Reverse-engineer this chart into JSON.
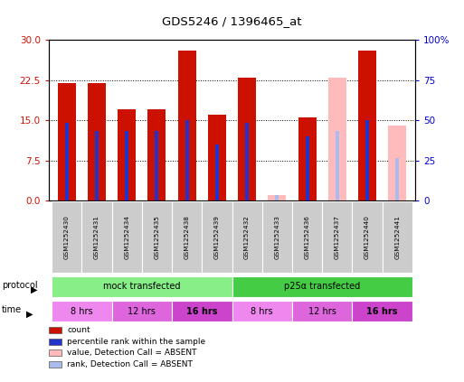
{
  "title": "GDS5246 / 1396465_at",
  "samples": [
    "GSM1252430",
    "GSM1252431",
    "GSM1252434",
    "GSM1252435",
    "GSM1252438",
    "GSM1252439",
    "GSM1252432",
    "GSM1252433",
    "GSM1252436",
    "GSM1252437",
    "GSM1252440",
    "GSM1252441"
  ],
  "red_values": [
    22.0,
    22.0,
    17.0,
    17.0,
    28.0,
    16.0,
    23.0,
    0.0,
    15.5,
    0.0,
    28.0,
    0.0
  ],
  "blue_values": [
    14.5,
    13.0,
    13.0,
    13.0,
    15.0,
    10.5,
    14.5,
    0.0,
    12.0,
    0.0,
    15.0,
    0.0
  ],
  "pink_values": [
    0.0,
    0.0,
    0.0,
    0.0,
    0.0,
    0.0,
    0.0,
    1.0,
    0.0,
    23.0,
    0.0,
    14.0
  ],
  "lblue_values": [
    0.0,
    0.0,
    0.0,
    0.0,
    0.0,
    0.0,
    0.0,
    1.0,
    0.0,
    13.0,
    0.0,
    8.0
  ],
  "ylim": [
    0,
    30
  ],
  "ylim_right": [
    0,
    100
  ],
  "yticks_left": [
    0,
    7.5,
    15,
    22.5,
    30
  ],
  "yticks_right": [
    0,
    25,
    50,
    75,
    100
  ],
  "bar_width": 0.6,
  "blue_bar_width": 0.12,
  "color_red": "#cc1100",
  "color_blue": "#2233cc",
  "color_pink": "#ffbbbb",
  "color_lblue": "#aabbee",
  "protocol_groups": [
    {
      "label": "mock transfected",
      "start": 0,
      "end": 5,
      "color": "#88ee88"
    },
    {
      "label": "p25α transfected",
      "start": 6,
      "end": 11,
      "color": "#44cc44"
    }
  ],
  "time_groups": [
    {
      "label": "8 hrs",
      "start": 0,
      "end": 1,
      "color": "#ee88ee"
    },
    {
      "label": "12 hrs",
      "start": 2,
      "end": 3,
      "color": "#dd66dd"
    },
    {
      "label": "16 hrs",
      "start": 4,
      "end": 5,
      "color": "#cc44cc"
    },
    {
      "label": "8 hrs",
      "start": 6,
      "end": 7,
      "color": "#ee88ee"
    },
    {
      "label": "12 hrs",
      "start": 8,
      "end": 9,
      "color": "#dd66dd"
    },
    {
      "label": "16 hrs",
      "start": 10,
      "end": 11,
      "color": "#cc44cc"
    }
  ],
  "legend_items": [
    {
      "label": "count",
      "color": "#cc1100"
    },
    {
      "label": "percentile rank within the sample",
      "color": "#2233cc"
    },
    {
      "label": "value, Detection Call = ABSENT",
      "color": "#ffbbbb"
    },
    {
      "label": "rank, Detection Call = ABSENT",
      "color": "#aabbee"
    }
  ],
  "fig_width": 5.13,
  "fig_height": 4.23,
  "dpi": 100
}
